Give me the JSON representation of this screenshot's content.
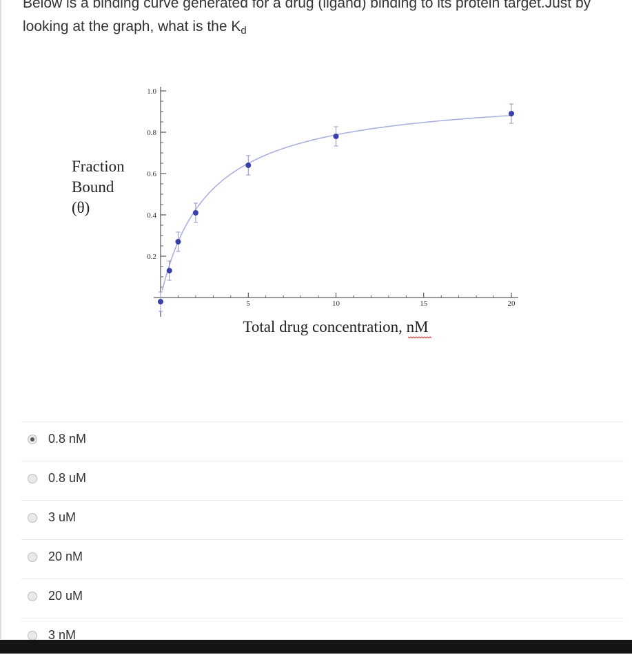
{
  "question": {
    "line1": "Below is a binding curve generated for a drug (ligand) binding to its protein target.Just by",
    "line2_prefix": "looking at the graph, what is the K",
    "line2_sub": "d"
  },
  "chart_data": {
    "type": "scatter",
    "ylabel_lines": [
      "Fraction",
      "Bound",
      "(θ)"
    ],
    "xlabel_text": "Total drug concentration, ",
    "xlabel_unit": "nM",
    "x_ticks": [
      "5",
      "10",
      "15",
      "20"
    ],
    "y_ticks": [
      "0.2",
      "0.4",
      "0.6",
      "0.8",
      "1.0"
    ],
    "xlim": [
      0,
      20
    ],
    "ylim": [
      0,
      1.0
    ],
    "series": [
      {
        "points": [
          {
            "x": 0,
            "y": -0.02
          },
          {
            "x": 0.5,
            "y": 0.13
          },
          {
            "x": 1,
            "y": 0.27
          },
          {
            "x": 2,
            "y": 0.41
          },
          {
            "x": 5,
            "y": 0.64
          },
          {
            "x": 10,
            "y": 0.78
          },
          {
            "x": 20,
            "y": 0.89
          }
        ]
      }
    ],
    "fit_curve": {
      "kd": 2.7,
      "bmax": 1.0
    },
    "colors": {
      "points": "#3a3fa8",
      "curve": "#aab0e0",
      "axis": "#333333"
    }
  },
  "answers": [
    {
      "label": "0.8 nM",
      "checked": true
    },
    {
      "label": "0.8 uM",
      "checked": false
    },
    {
      "label": "3 uM",
      "checked": false
    },
    {
      "label": "20 nM",
      "checked": false
    },
    {
      "label": "20 uM",
      "checked": false
    },
    {
      "label": "3 nM",
      "checked": false
    }
  ]
}
